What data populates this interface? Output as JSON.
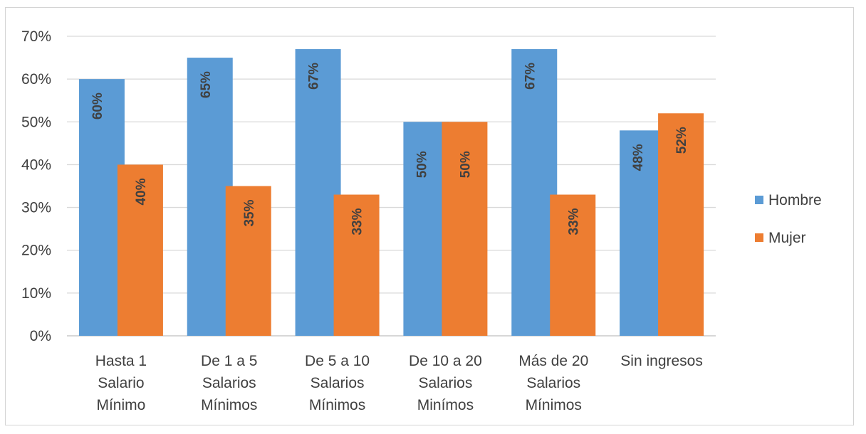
{
  "chart_data": {
    "type": "bar",
    "categories": [
      [
        "Hasta  1",
        "Salario",
        "Mínimo"
      ],
      [
        "De 1 a 5",
        "Salarios",
        "Mínimos"
      ],
      [
        "De 5 a 10",
        "Salarios",
        "Mínimos"
      ],
      [
        "De 10 a 20",
        "Salarios",
        "Minímos"
      ],
      [
        "Más de 20",
        "Salarios",
        "Mínimos"
      ],
      [
        "Sin ingresos"
      ]
    ],
    "series": [
      {
        "name": "Hombre",
        "color": "#5b9bd5",
        "values": [
          60,
          65,
          67,
          50,
          67,
          48
        ],
        "labels": [
          "60%",
          "65%",
          "67%",
          "50%",
          "67%",
          "48%"
        ]
      },
      {
        "name": "Mujer",
        "color": "#ed7d31",
        "values": [
          40,
          35,
          33,
          50,
          33,
          52
        ],
        "labels": [
          "40%",
          "35%",
          "33%",
          "50%",
          "33%",
          "52%"
        ]
      }
    ],
    "y_ticks": [
      "0%",
      "10%",
      "20%",
      "30%",
      "40%",
      "50%",
      "60%",
      "70%"
    ],
    "ylim": [
      0,
      70
    ],
    "grid": true,
    "legend_position": "right"
  }
}
